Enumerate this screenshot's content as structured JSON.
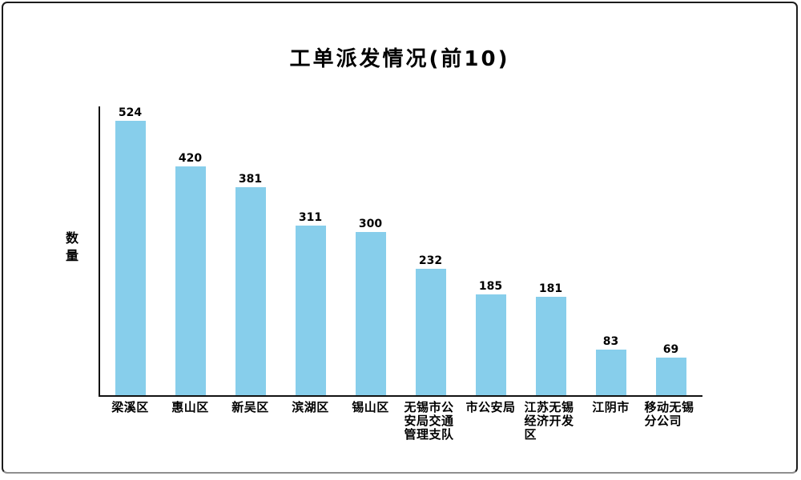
{
  "chart_data": {
    "type": "bar",
    "title": "工单派发情况(前10)",
    "ylabel": "数量",
    "xlabel": "",
    "categories": [
      "梁溪区",
      "惠山区",
      "新吴区",
      "滨湖区",
      "锡山区",
      "无锡市公安局交通管理支队",
      "市公安局",
      "江苏无锡经济开发区",
      "江阴市",
      "移动无锡分公司"
    ],
    "values": [
      524,
      420,
      381,
      311,
      300,
      232,
      185,
      181,
      83,
      69
    ],
    "value_labels_shown": true,
    "ylim": [
      0,
      530
    ],
    "grid": false,
    "legend": "none",
    "bar_color": "#87CEEB",
    "axis_color": "#111111",
    "text_color": "#000000"
  }
}
